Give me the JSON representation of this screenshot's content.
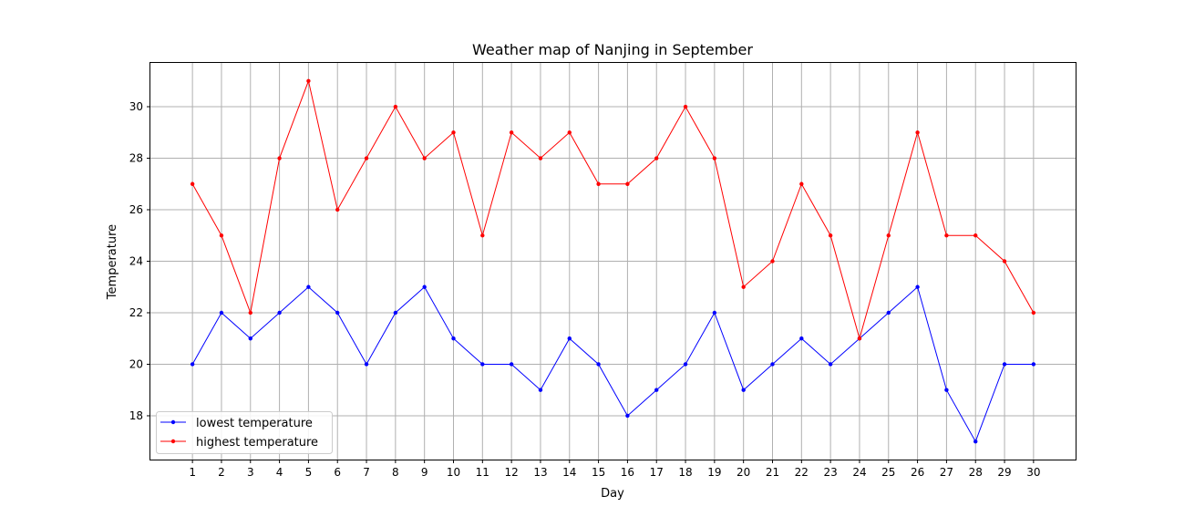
{
  "chart_data": {
    "type": "line",
    "title": "Weather map of Nanjing in September",
    "xlabel": "Day",
    "ylabel": "Temperature",
    "x": [
      1,
      2,
      3,
      4,
      5,
      6,
      7,
      8,
      9,
      10,
      11,
      12,
      13,
      14,
      15,
      16,
      17,
      18,
      19,
      20,
      21,
      22,
      23,
      24,
      25,
      26,
      27,
      28,
      29,
      30
    ],
    "xlim": [
      -0.45,
      31.45
    ],
    "ylim": [
      16.3,
      31.7
    ],
    "yticks": [
      18,
      20,
      22,
      24,
      26,
      28,
      30
    ],
    "grid": true,
    "legend_position": "lower-left",
    "series": [
      {
        "name": "lowest temperature",
        "color": "#0000ff",
        "values": [
          20,
          22,
          21,
          22,
          23,
          22,
          20,
          22,
          23,
          21,
          20,
          20,
          19,
          21,
          20,
          18,
          19,
          20,
          22,
          19,
          20,
          21,
          20,
          21,
          22,
          23,
          19,
          17,
          20,
          20
        ]
      },
      {
        "name": "highest temperature",
        "color": "#ff0000",
        "values": [
          27,
          25,
          22,
          28,
          31,
          26,
          28,
          30,
          28,
          29,
          25,
          29,
          28,
          29,
          27,
          27,
          28,
          30,
          28,
          23,
          24,
          27,
          25,
          21,
          25,
          29,
          25,
          25,
          24,
          22
        ]
      }
    ]
  }
}
